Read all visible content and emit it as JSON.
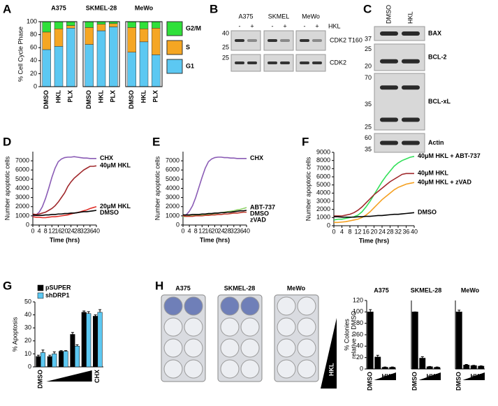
{
  "panel_letters": [
    "A",
    "B",
    "C",
    "D",
    "E",
    "F",
    "G",
    "H"
  ],
  "blot_b": {
    "cell_lines": [
      "A375",
      "SKMEL",
      "MeWo"
    ],
    "treatment": "HKL",
    "lanes": [
      "-",
      "+",
      "-",
      "+",
      "-",
      "+"
    ],
    "rows": [
      {
        "label": "CDK2 T160",
        "markers": [
          "40",
          "25"
        ]
      },
      {
        "label": "CDK2",
        "markers": [
          "25"
        ]
      }
    ]
  },
  "blot_c": {
    "lanes": [
      "DMSO",
      "HKL"
    ],
    "rows": [
      {
        "label": "BAX",
        "markers": [
          "37"
        ]
      },
      {
        "label": "BCL-2",
        "markers": [
          "25",
          "20"
        ]
      },
      {
        "label": "BCL-xL",
        "markers": [
          "70",
          "35",
          "25"
        ]
      },
      {
        "label": "Actin",
        "markers": [
          "60",
          "35"
        ]
      }
    ]
  },
  "plates_h": {
    "labels": [
      "A375",
      "SKMEL-28",
      "MeWo"
    ],
    "treatment": "HKL"
  },
  "chart_data": [
    {
      "type": "stacked_bar",
      "ylabel": "% Cell Cycle Phase",
      "groups": [
        "A375",
        "SKMEL-28",
        "MeWo"
      ],
      "categories": [
        "DMSO",
        "HKL",
        "PLX",
        "DMSO",
        "HKL",
        "PLX",
        "DMSO",
        "HKL",
        "PLX"
      ],
      "ylim": [
        0,
        100
      ],
      "yticks": [
        0,
        20,
        40,
        60,
        80,
        100
      ],
      "series": [
        {
          "name": "G2/M",
          "color": "#2fe03a",
          "values": [
            16,
            11,
            6,
            9,
            4,
            3,
            9,
            11,
            10
          ]
        },
        {
          "name": "S",
          "color": "#f5a623",
          "values": [
            27,
            27,
            4,
            26,
            10,
            5,
            38,
            20,
            41
          ]
        },
        {
          "name": "G1",
          "color": "#5cc8f2",
          "values": [
            57,
            62,
            90,
            65,
            86,
            92,
            53,
            69,
            49
          ]
        }
      ]
    },
    {
      "type": "line",
      "xlabel": "Time (hrs)",
      "ylabel": "Number apoptotic cells",
      "x": [
        0,
        2,
        4,
        6,
        8,
        10,
        12,
        14,
        16,
        18,
        20,
        22,
        24,
        26,
        28,
        30,
        32,
        34,
        36,
        38,
        40
      ],
      "xlim": [
        0,
        40
      ],
      "xticks": [
        0,
        4,
        8,
        12,
        16,
        20,
        24,
        28,
        32,
        36,
        40
      ],
      "ylim": [
        0,
        8000
      ],
      "yticks": [
        0,
        1000,
        2000,
        3000,
        4000,
        5000,
        6000,
        7000
      ],
      "series": [
        {
          "name": "CHX",
          "color": "#8a5bb5",
          "values": [
            1000,
            1100,
            1400,
            2000,
            2900,
            4000,
            5200,
            6200,
            6900,
            7200,
            7350,
            7400,
            7400,
            7450,
            7400,
            7350,
            7300,
            7300,
            7250,
            7250,
            7250
          ]
        },
        {
          "name": "40μM HKL",
          "color": "#a0282c",
          "values": [
            1200,
            1150,
            1200,
            1300,
            1400,
            1600,
            1800,
            2100,
            2500,
            3000,
            3500,
            4200,
            4700,
            5100,
            5400,
            5700,
            6000,
            6200,
            6400,
            6400,
            6450
          ]
        },
        {
          "name": "20μM HKL",
          "color": "#e0302a",
          "values": [
            900,
            850,
            850,
            800,
            800,
            850,
            900,
            900,
            950,
            1000,
            1050,
            1100,
            1200,
            1300,
            1350,
            1450,
            1550,
            1650,
            1800,
            1900,
            2000
          ]
        },
        {
          "name": "DMSO",
          "color": "#000000",
          "values": [
            1100,
            1050,
            1050,
            1050,
            1100,
            1100,
            1150,
            1150,
            1200,
            1200,
            1250,
            1250,
            1300,
            1300,
            1350,
            1400,
            1450,
            1450,
            1500,
            1550,
            1600
          ]
        }
      ]
    },
    {
      "type": "line",
      "xlabel": "Time (hrs)",
      "ylabel": "Number apoptotic cells",
      "x": [
        0,
        2,
        4,
        6,
        8,
        10,
        12,
        14,
        16,
        18,
        20,
        22,
        24,
        26,
        28,
        30,
        32,
        34,
        36,
        38,
        40
      ],
      "xlim": [
        0,
        40
      ],
      "xticks": [
        0,
        4,
        8,
        12,
        16,
        20,
        24,
        28,
        32,
        36,
        40
      ],
      "ylim": [
        0,
        8000
      ],
      "yticks": [
        0,
        1000,
        2000,
        3000,
        4000,
        5000,
        6000,
        7000
      ],
      "series": [
        {
          "name": "CHX",
          "color": "#8a5bb5",
          "values": [
            1000,
            1100,
            1500,
            2100,
            3000,
            4100,
            5200,
            6200,
            6900,
            7200,
            7350,
            7400,
            7400,
            7350,
            7350,
            7300,
            7300,
            7250,
            7250,
            7250,
            7250
          ]
        },
        {
          "name": "ABT-737",
          "color": "#8fd16a",
          "values": [
            900,
            950,
            1000,
            1000,
            1050,
            1050,
            1100,
            1150,
            1150,
            1200,
            1250,
            1300,
            1350,
            1400,
            1450,
            1500,
            1550,
            1650,
            1700,
            1800,
            1900
          ]
        },
        {
          "name": "DMSO",
          "color": "#000000",
          "values": [
            1100,
            1100,
            1100,
            1150,
            1150,
            1150,
            1200,
            1200,
            1250,
            1250,
            1300,
            1300,
            1350,
            1350,
            1400,
            1400,
            1450,
            1500,
            1550,
            1550,
            1600
          ]
        },
        {
          "name": "zVAD",
          "color": "#c0392b",
          "values": [
            1000,
            950,
            950,
            950,
            1000,
            1000,
            1000,
            1050,
            1050,
            1100,
            1100,
            1150,
            1150,
            1200,
            1200,
            1250,
            1300,
            1300,
            1350,
            1400,
            1400
          ]
        }
      ]
    },
    {
      "type": "line",
      "xlabel": "Time (hrs)",
      "ylabel": "Number apoptotic cells",
      "x": [
        0,
        2,
        4,
        6,
        8,
        10,
        12,
        14,
        16,
        18,
        20,
        22,
        24,
        26,
        28,
        30,
        32,
        34,
        36,
        38,
        40
      ],
      "xlim": [
        0,
        40
      ],
      "xticks": [
        0,
        4,
        8,
        12,
        16,
        20,
        24,
        28,
        32,
        36,
        40
      ],
      "ylim": [
        0,
        9000
      ],
      "yticks": [
        0,
        1000,
        2000,
        3000,
        4000,
        5000,
        6000,
        7000,
        8000,
        9000
      ],
      "series": [
        {
          "name": "40μM HKL + ABT-737",
          "color": "#33e05a",
          "values": [
            700,
            800,
            800,
            900,
            1000,
            1100,
            1300,
            1700,
            2300,
            3000,
            3800,
            4600,
            5400,
            6100,
            6700,
            7300,
            7700,
            8000,
            8200,
            8400,
            8500
          ]
        },
        {
          "name": "40μM HKL",
          "color": "#a0282c",
          "values": [
            1200,
            1200,
            1200,
            1300,
            1400,
            1600,
            1900,
            2300,
            2800,
            3300,
            3800,
            4200,
            4600,
            5000,
            5400,
            5700,
            6000,
            6300,
            6400,
            6400,
            6400
          ]
        },
        {
          "name": "40μM HKL + zVAD",
          "color": "#f5a020",
          "values": [
            400,
            400,
            450,
            500,
            600,
            700,
            800,
            1000,
            1300,
            1700,
            2200,
            2700,
            3200,
            3600,
            4000,
            4400,
            4700,
            4900,
            5100,
            5200,
            5300
          ]
        },
        {
          "name": "DMSO",
          "color": "#000000",
          "values": [
            1100,
            1100,
            1050,
            1050,
            1050,
            1050,
            1100,
            1100,
            1150,
            1150,
            1200,
            1250,
            1250,
            1300,
            1350,
            1400,
            1400,
            1450,
            1500,
            1550,
            1600
          ]
        }
      ]
    },
    {
      "type": "bar",
      "ylabel": "% Apoptosis",
      "annotation": "HKL",
      "categories": [
        "DMSO",
        null,
        null,
        null,
        null,
        "CHX"
      ],
      "ylim": [
        0,
        50
      ],
      "yticks": [
        0,
        10,
        20,
        30,
        40,
        50
      ],
      "legend": "top-left",
      "series": [
        {
          "name": "pSUPER",
          "color": "#000000",
          "values": [
            8,
            8,
            12,
            25,
            42,
            39
          ],
          "errors": [
            1,
            1,
            0.5,
            1.5,
            1,
            1
          ]
        },
        {
          "name": "shDRP1",
          "color": "#5cc8f2",
          "values": [
            11,
            10,
            12,
            16,
            41,
            42
          ],
          "errors": [
            2,
            1.5,
            0.5,
            1,
            1.5,
            2
          ]
        }
      ]
    },
    {
      "type": "bar",
      "title": "A375",
      "ylabel": [
        "% Colonies",
        "relative to DMSO"
      ],
      "annotation": "HKL",
      "categories": [
        "DMSO",
        null,
        null,
        null
      ],
      "ylim": [
        0,
        120
      ],
      "yticks": [
        0,
        20,
        40,
        60,
        80,
        100,
        120
      ],
      "color": "#000000",
      "values": [
        100,
        21,
        3,
        3
      ],
      "errors": [
        4,
        3,
        0.5,
        0.5
      ]
    },
    {
      "type": "bar",
      "title": "SKMEL-28",
      "annotation": "HKL",
      "categories": [
        "DMSO",
        null,
        null,
        null
      ],
      "ylim": [
        0,
        120
      ],
      "color": "#000000",
      "values": [
        100,
        19,
        4,
        3
      ],
      "errors": [
        0,
        2.5,
        0.5,
        0.5
      ]
    },
    {
      "type": "bar",
      "title": "MeWo",
      "annotation": "HKL",
      "categories": [
        "DMSO",
        null,
        null,
        null
      ],
      "ylim": [
        0,
        120
      ],
      "color": "#000000",
      "values": [
        100,
        7,
        6,
        5
      ],
      "errors": [
        3,
        1,
        0.5,
        0.5
      ]
    }
  ]
}
